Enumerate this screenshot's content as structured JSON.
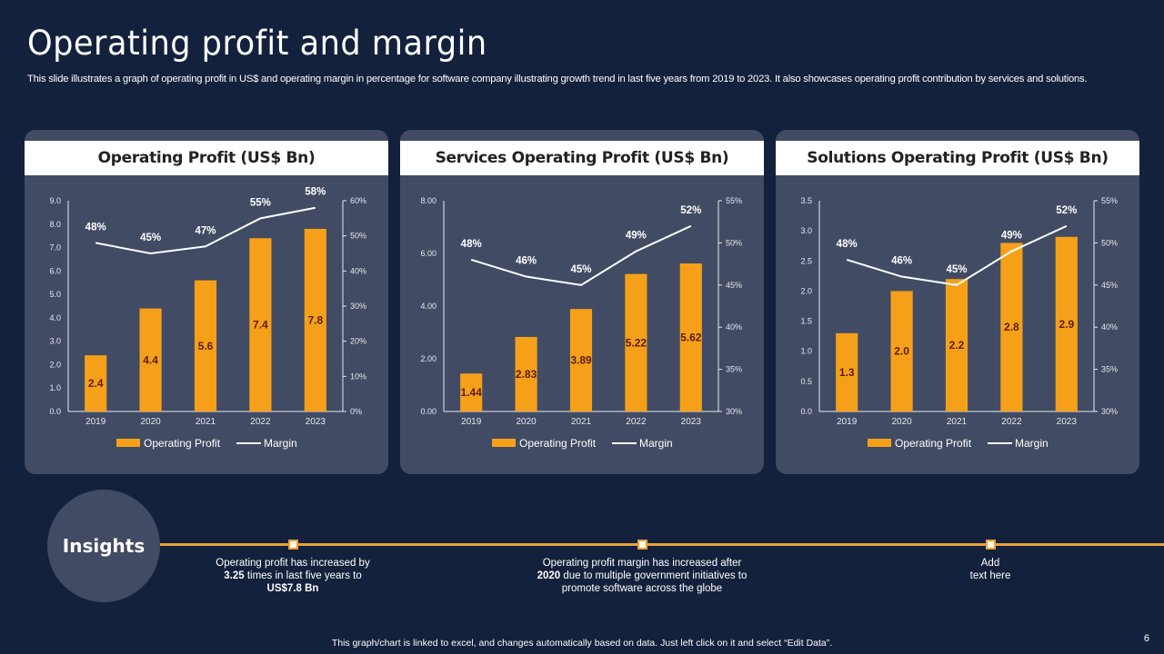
{
  "slide": {
    "title": "Operating profit and margin",
    "subtitle": "This slide illustrates a graph of operating profit in US$ and operating margin in percentage for software company illustrating growth trend in last five years from 2019 to 2023. It also showcases operating profit contribution by services and solutions.",
    "footer_note": "This graph/chart is linked to excel, and changes automatically based on data. Just left click on it and select “Edit Data”.",
    "page_number": "6"
  },
  "colors": {
    "background": "#14213d",
    "panel": "#414b63",
    "bar": "#f6a01a",
    "line": "#ffffff",
    "timeline": "#e8a23c",
    "bar_label": "#5a1e0a"
  },
  "insights": {
    "label": "Insights",
    "items": [
      {
        "pre": "Operating profit has increased by",
        "bold1": "3.25",
        "mid": " times in last five years to",
        "bold2": "US$7.8 Bn",
        "post": ""
      },
      {
        "pre": "Operating profit margin has increased after",
        "bold1": "2020",
        "mid": " due to  multiple government initiatives to",
        "bold2": "",
        "post": "promote software across the globe"
      },
      {
        "pre": "Add",
        "bold1": "",
        "mid": "text here",
        "bold2": "",
        "post": ""
      }
    ]
  },
  "chart_data": [
    {
      "type": "bar",
      "title": "Operating Profit (US$ Bn)",
      "categories": [
        "2019",
        "2020",
        "2021",
        "2022",
        "2023"
      ],
      "series": [
        {
          "name": "Operating Profit",
          "type": "bar",
          "axis": "left",
          "values": [
            2.4,
            4.4,
            5.6,
            7.4,
            7.8
          ],
          "labels": [
            "2.4",
            "4.4",
            "5.6",
            "7.4",
            "7.8"
          ]
        },
        {
          "name": "Margin",
          "type": "line",
          "axis": "right",
          "values": [
            48,
            45,
            47,
            55,
            58
          ],
          "labels": [
            "48%",
            "45%",
            "47%",
            "55%",
            "58%"
          ]
        }
      ],
      "ylim": [
        0,
        9
      ],
      "yticks": [
        "0.0",
        "1.0",
        "2.0",
        "3.0",
        "4.0",
        "5.0",
        "6.0",
        "7.0",
        "8.0",
        "9.0"
      ],
      "y2lim": [
        0,
        60
      ],
      "y2ticks": [
        "0%",
        "10%",
        "20%",
        "30%",
        "40%",
        "50%",
        "60%"
      ],
      "legend": "bottom",
      "grid": false
    },
    {
      "type": "bar",
      "title": "Services Operating Profit (US$ Bn)",
      "categories": [
        "2019",
        "2020",
        "2021",
        "2022",
        "2023"
      ],
      "series": [
        {
          "name": "Operating Profit",
          "type": "bar",
          "axis": "left",
          "values": [
            1.44,
            2.83,
            3.89,
            5.22,
            5.62
          ],
          "labels": [
            "1.44",
            "2.83",
            "3.89",
            "5.22",
            "5.62"
          ]
        },
        {
          "name": "Margin",
          "type": "line",
          "axis": "right",
          "values": [
            48,
            46,
            45,
            49,
            52
          ],
          "labels": [
            "48%",
            "46%",
            "45%",
            "49%",
            "52%"
          ]
        }
      ],
      "ylim": [
        0,
        8
      ],
      "yticks": [
        "0.00",
        "2.00",
        "4.00",
        "6.00",
        "8.00"
      ],
      "y2lim": [
        30,
        55
      ],
      "y2ticks": [
        "30%",
        "35%",
        "40%",
        "45%",
        "50%",
        "55%"
      ],
      "legend": "bottom",
      "grid": false
    },
    {
      "type": "bar",
      "title": "Solutions Operating Profit (US$ Bn)",
      "categories": [
        "2019",
        "2020",
        "2021",
        "2022",
        "2023"
      ],
      "series": [
        {
          "name": "Operating Profit",
          "type": "bar",
          "axis": "left",
          "values": [
            1.3,
            2.0,
            2.2,
            2.8,
            2.9
          ],
          "labels": [
            "1.3",
            "2.0",
            "2.2",
            "2.8",
            "2.9"
          ]
        },
        {
          "name": "Margin",
          "type": "line",
          "axis": "right",
          "values": [
            48,
            46,
            45,
            49,
            52
          ],
          "labels": [
            "48%",
            "46%",
            "45%",
            "49%",
            "52%"
          ]
        }
      ],
      "ylim": [
        0,
        3.5
      ],
      "yticks": [
        "0.0",
        "0.5",
        "1.0",
        "1.5",
        "2.0",
        "2.5",
        "3.0",
        "3.5"
      ],
      "y2lim": [
        30,
        55
      ],
      "y2ticks": [
        "30%",
        "35%",
        "40%",
        "45%",
        "50%",
        "55%"
      ],
      "legend": "bottom",
      "grid": false
    }
  ]
}
